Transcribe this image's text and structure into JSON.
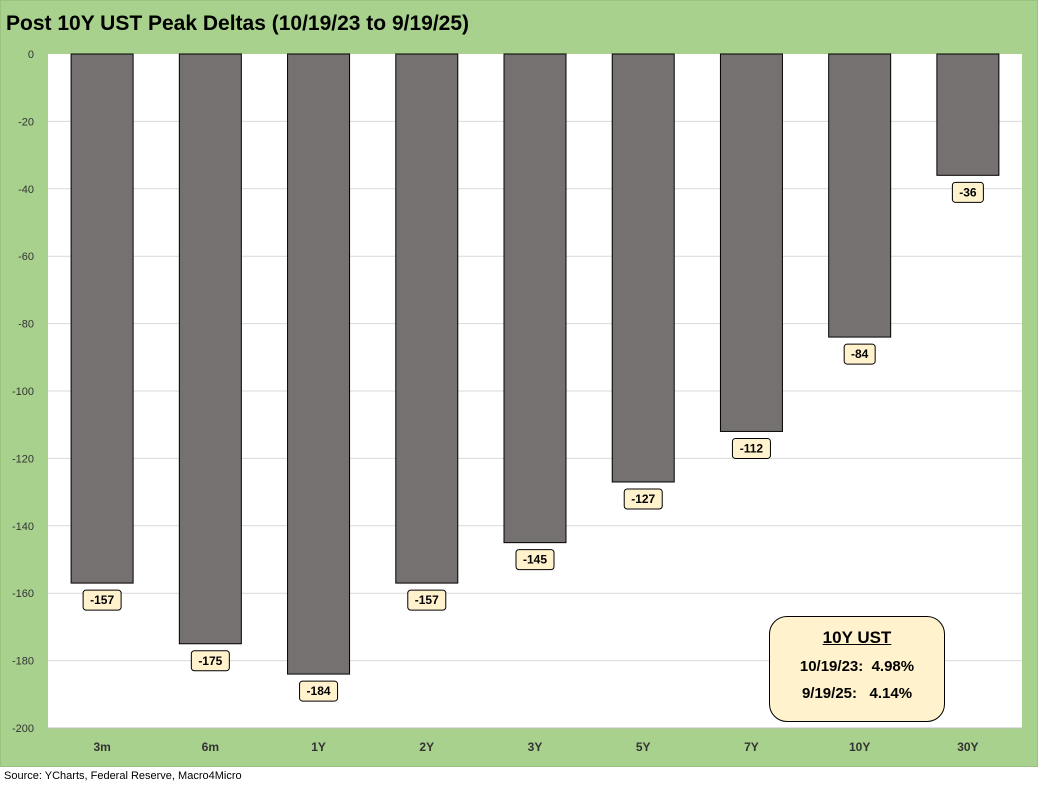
{
  "title": "Post 10Y UST Peak Deltas (10/19/23 to 9/19/25)",
  "source": "Source: YCharts, Federal Reserve, Macro4Micro",
  "colors": {
    "frame_bg": "#a9d18e",
    "plot_bg": "#ffffff",
    "bar_fill": "#767171",
    "label_bg": "#fff2cc",
    "grid": "#d9d9d9"
  },
  "chart_data": {
    "type": "bar",
    "categories": [
      "3m",
      "6m",
      "1Y",
      "2Y",
      "3Y",
      "5Y",
      "7Y",
      "10Y",
      "30Y"
    ],
    "values": [
      -157,
      -175,
      -184,
      -157,
      -145,
      -127,
      -112,
      -84,
      -36
    ],
    "ylim": [
      -200,
      0
    ],
    "yticks": [
      0,
      -20,
      -40,
      -60,
      -80,
      -100,
      -120,
      -140,
      -160,
      -180,
      -200
    ],
    "grid": true,
    "data_labels": true
  },
  "legend_box": {
    "title": "10Y UST",
    "lines": [
      "10/19/23:  4.98%",
      "9/19/25:   4.14%"
    ]
  }
}
